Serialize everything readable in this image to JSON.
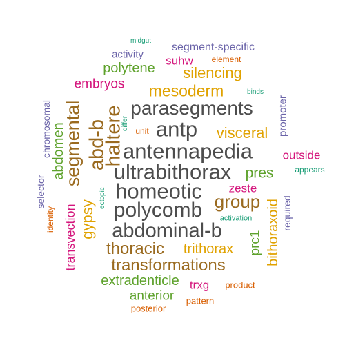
{
  "words": [
    {
      "text": "ultrabithorax",
      "color": "#4d4d4d"
    },
    {
      "text": "homeotic",
      "color": "#4d4d4d"
    },
    {
      "text": "antennapedia",
      "color": "#4d4d4d"
    },
    {
      "text": "parasegments",
      "color": "#4d4d4d"
    },
    {
      "text": "polycomb",
      "color": "#4d4d4d"
    },
    {
      "text": "abdominal-b",
      "color": "#4d4d4d"
    },
    {
      "text": "antp",
      "color": "#4d4d4d"
    },
    {
      "text": "abd-b",
      "color": "#9a6a1f"
    },
    {
      "text": "haltere",
      "color": "#9a6a1f"
    },
    {
      "text": "segmental",
      "color": "#9a6a1f"
    },
    {
      "text": "group",
      "color": "#9a6a1f"
    },
    {
      "text": "thoracic",
      "color": "#9a6a1f"
    },
    {
      "text": "transformations",
      "color": "#9a6a1f"
    },
    {
      "text": "mesoderm",
      "color": "#e0a200"
    },
    {
      "text": "visceral",
      "color": "#e0a200"
    },
    {
      "text": "silencing",
      "color": "#e0a200"
    },
    {
      "text": "trithorax",
      "color": "#e0a200"
    },
    {
      "text": "gypsy",
      "color": "#e0a200"
    },
    {
      "text": "bithoraxoid",
      "color": "#e0a200"
    },
    {
      "text": "pres",
      "color": "#5ea22c"
    },
    {
      "text": "polytene",
      "color": "#5ea22c"
    },
    {
      "text": "abdomen",
      "color": "#5ea22c"
    },
    {
      "text": "prc1",
      "color": "#5ea22c"
    },
    {
      "text": "extradenticle",
      "color": "#5ea22c"
    },
    {
      "text": "anterior",
      "color": "#5ea22c"
    },
    {
      "text": "embryos",
      "color": "#d4157c"
    },
    {
      "text": "suhw",
      "color": "#d4157c"
    },
    {
      "text": "outside",
      "color": "#d4157c"
    },
    {
      "text": "zeste",
      "color": "#d4157c"
    },
    {
      "text": "transvection",
      "color": "#d4157c"
    },
    {
      "text": "trxg",
      "color": "#d4157c"
    },
    {
      "text": "segment-specific",
      "color": "#6a63a8"
    },
    {
      "text": "activity",
      "color": "#6a63a8"
    },
    {
      "text": "chromosomal",
      "color": "#6a63a8"
    },
    {
      "text": "promoter",
      "color": "#6a63a8"
    },
    {
      "text": "selector",
      "color": "#6a63a8"
    },
    {
      "text": "required",
      "color": "#6a63a8"
    },
    {
      "text": "element",
      "color": "#d95f02"
    },
    {
      "text": "unit",
      "color": "#d95f02"
    },
    {
      "text": "identity",
      "color": "#d95f02"
    },
    {
      "text": "product",
      "color": "#d95f02"
    },
    {
      "text": "pattern",
      "color": "#d95f02"
    },
    {
      "text": "posterior",
      "color": "#d95f02"
    },
    {
      "text": "midgut",
      "color": "#1b9e77"
    },
    {
      "text": "binds",
      "color": "#1b9e77"
    },
    {
      "text": "differ",
      "color": "#1b9e77"
    },
    {
      "text": "appears",
      "color": "#1b9e77"
    },
    {
      "text": "ectopic",
      "color": "#1b9e77"
    },
    {
      "text": "activation",
      "color": "#1b9e77"
    }
  ]
}
